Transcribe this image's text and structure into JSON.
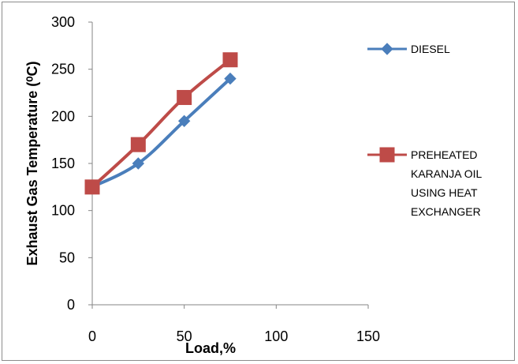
{
  "chart_data": {
    "type": "line",
    "title": "",
    "xlabel": "Load,%",
    "ylabel": "Exhaust  Gas Temperature (⁰C)",
    "xlim": [
      0,
      150
    ],
    "ylim": [
      0,
      300
    ],
    "xticks": [
      0,
      50,
      100,
      150
    ],
    "yticks": [
      0,
      50,
      100,
      150,
      200,
      250,
      300
    ],
    "grid": false,
    "legend_position": "right",
    "series": [
      {
        "name": "DIESEL",
        "legend_lines": [
          "DIESEL"
        ],
        "x": [
          0,
          25,
          50,
          75
        ],
        "y": [
          125,
          150,
          195,
          240
        ],
        "color": "#4a7ebb",
        "marker": "diamond"
      },
      {
        "name": "PREHEATED KARANJA OIL USING HEAT EXCHANGER",
        "legend_lines": [
          "PREHEATED",
          "KARANJA OIL",
          "USING HEAT",
          "EXCHANGER"
        ],
        "x": [
          0,
          25,
          50,
          75
        ],
        "y": [
          125,
          170,
          220,
          260
        ],
        "color": "#be4b48",
        "marker": "square"
      }
    ]
  }
}
